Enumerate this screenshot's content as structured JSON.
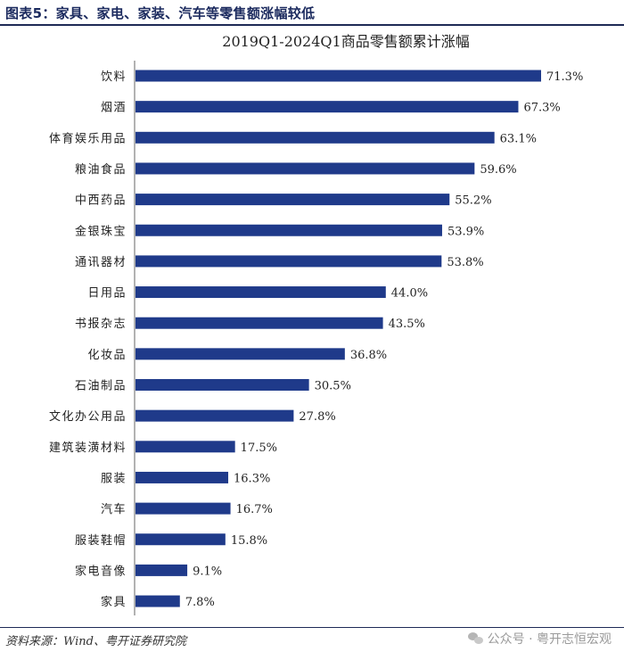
{
  "figure_title": "图表5：家具、家电、家装、汽车等零售额涨幅较低",
  "source_text": "资料来源：Wind、粤开证券研究院",
  "watermark_text": "公众号 · 粤开志恒宏观",
  "colors": {
    "bar": "#1f3a8a",
    "title": "#1b2a5e"
  },
  "chart_data": {
    "type": "bar",
    "orientation": "horizontal",
    "title": "2019Q1-2024Q1商品零售额累计涨幅",
    "xlabel": "",
    "ylabel": "",
    "xlim": [
      0,
      80
    ],
    "grid": false,
    "categories": [
      "饮料",
      "烟酒",
      "体育娱乐用品",
      "粮油食品",
      "中西药品",
      "金银珠宝",
      "通讯器材",
      "日用品",
      "书报杂志",
      "化妆品",
      "石油制品",
      "文化办公用品",
      "建筑装潢材料",
      "服装",
      "汽车",
      "服装鞋帽",
      "家电音像",
      "家具"
    ],
    "values": [
      71.3,
      67.3,
      63.1,
      59.6,
      55.2,
      53.9,
      53.8,
      44.0,
      43.5,
      36.8,
      30.5,
      27.8,
      17.5,
      16.3,
      16.7,
      15.8,
      9.1,
      7.8
    ],
    "value_labels": [
      "71.3%",
      "67.3%",
      "63.1%",
      "59.6%",
      "55.2%",
      "53.9%",
      "53.8%",
      "44.0%",
      "43.5%",
      "36.8%",
      "30.5%",
      "27.8%",
      "17.5%",
      "16.3%",
      "16.7%",
      "15.8%",
      "9.1%",
      "7.8%"
    ]
  }
}
